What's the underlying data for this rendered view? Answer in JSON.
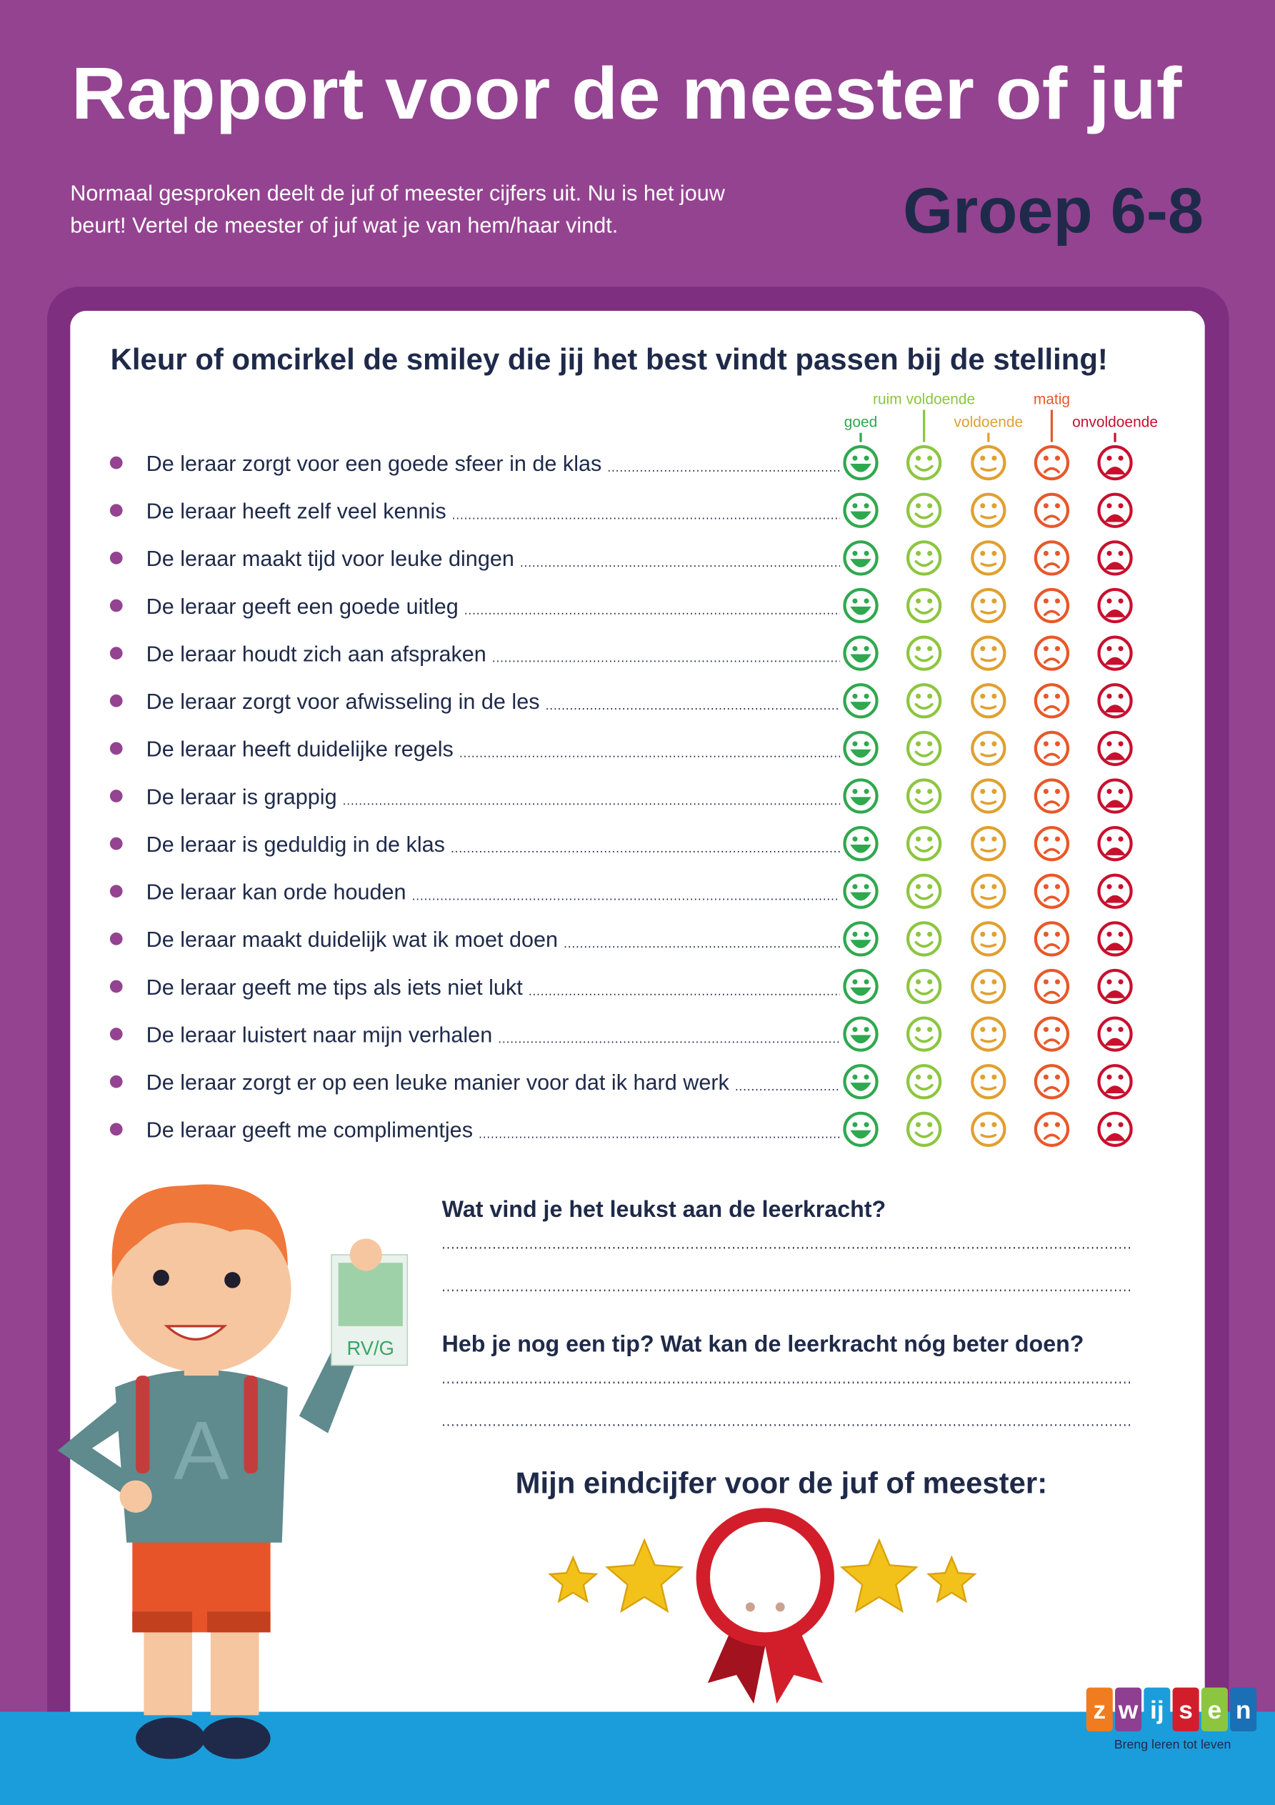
{
  "header": {
    "title": "Rapport voor de meester of juf",
    "intro": [
      "Normaal gesproken deelt de juf of meester cijfers uit. Nu is het jouw",
      "beurt! Vertel de meester of juf wat je van hem/haar vindt."
    ],
    "group": "Groep 6-8"
  },
  "form": {
    "instruction": "Kleur of omcirkel de smiley die jij het best vindt passen bij de stelling!",
    "scale": [
      "goed",
      "ruim voldoende",
      "voldoende",
      "matig",
      "onvoldoende"
    ],
    "statements": [
      "De leraar zorgt voor een goede sfeer in de klas",
      "De leraar heeft zelf veel kennis",
      "De leraar maakt tijd voor leuke dingen",
      "De leraar geeft een goede uitleg",
      "De leraar houdt zich aan afspraken",
      "De leraar zorgt voor afwisseling in de les",
      "De leraar heeft duidelijke regels",
      "De leraar is grappig",
      "De leraar is geduldig in de klas",
      "De leraar kan orde houden",
      "De leraar maakt duidelijk wat ik moet doen",
      "De leraar geeft me tips als iets niet lukt",
      "De leraar luistert naar mijn verhalen",
      "De leraar zorgt er op een leuke manier voor dat  ik hard werk",
      "De leraar geeft me complimentjes"
    ],
    "questions": [
      "Wat vind je het leukst aan de leerkracht?",
      "Heb je nog een tip? Wat kan de leerkracht nóg beter doen?"
    ],
    "final_grade": "Mijn eindcijfer voor de juf of meester:"
  },
  "illustration": {
    "paper_text": "RV/G",
    "shirt_letter": "A"
  },
  "logo": {
    "letters": [
      "z",
      "w",
      "ij",
      "s",
      "e",
      "n"
    ],
    "tagline": "Breng leren tot leven"
  }
}
